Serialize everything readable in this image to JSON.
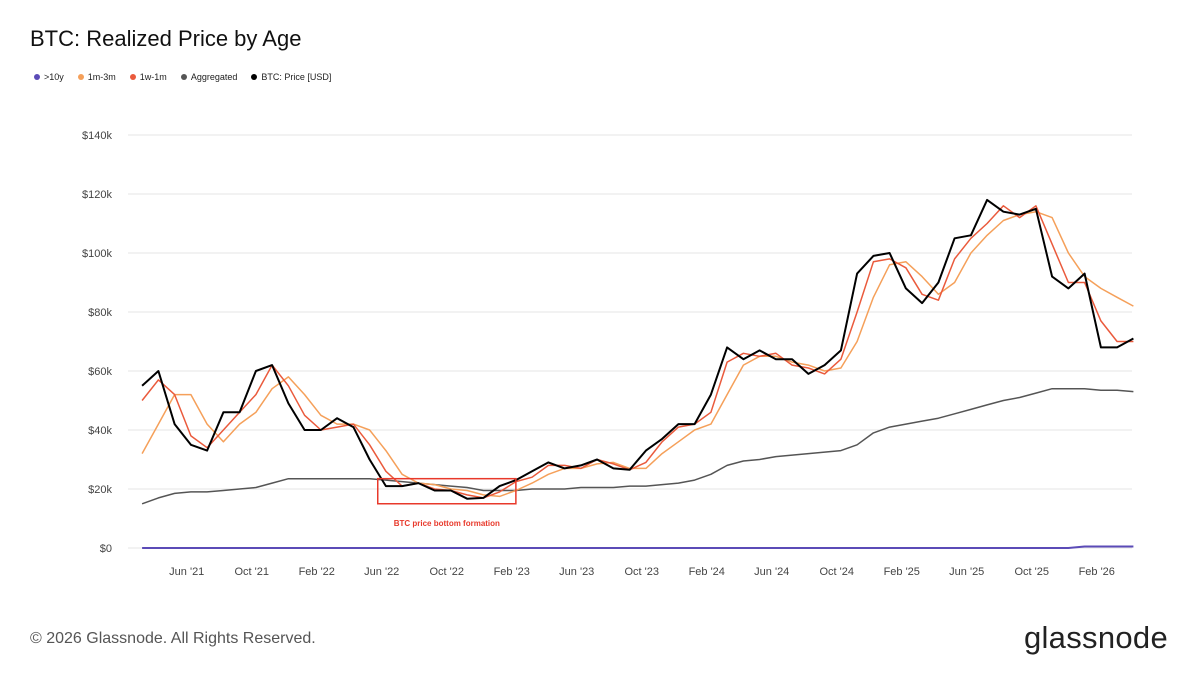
{
  "header": {
    "title": "BTC: Realized Price by Age"
  },
  "footer": {
    "copyright": "© 2026 Glassnode. All Rights Reserved.",
    "logo": "glassnode"
  },
  "chart_data": {
    "type": "line",
    "title": "BTC: Realized Price by Age",
    "xlabel": "",
    "ylabel": "",
    "ylim": [
      0,
      140000
    ],
    "grid": true,
    "legend_position": "top-left",
    "y_ticks": [
      {
        "v": 0,
        "label": "$0"
      },
      {
        "v": 20,
        "label": "$20k"
      },
      {
        "v": 40,
        "label": "$40k"
      },
      {
        "v": 60,
        "label": "$60k"
      },
      {
        "v": 80,
        "label": "$80k"
      },
      {
        "v": 100,
        "label": "$100k"
      },
      {
        "v": 120,
        "label": "$120k"
      },
      {
        "v": 140,
        "label": "$140k"
      }
    ],
    "x_ticks": [
      {
        "m": 3,
        "label": "Jun '21"
      },
      {
        "m": 7,
        "label": "Oct '21"
      },
      {
        "m": 11,
        "label": "Feb '22"
      },
      {
        "m": 15,
        "label": "Jun '22"
      },
      {
        "m": 19,
        "label": "Oct '22"
      },
      {
        "m": 23,
        "label": "Feb '23"
      },
      {
        "m": 27,
        "label": "Jun '23"
      },
      {
        "m": 31,
        "label": "Oct '23"
      },
      {
        "m": 35,
        "label": "Feb '24"
      },
      {
        "m": 39,
        "label": "Jun '24"
      },
      {
        "m": 43,
        "label": "Oct '24"
      },
      {
        "m": 47,
        "label": "Feb '25"
      },
      {
        "m": 51,
        "label": "Jun '25"
      },
      {
        "m": 55,
        "label": "Oct '25"
      },
      {
        "m": 59,
        "label": "Feb '26"
      }
    ],
    "x_start": "2021-03",
    "units": "USD thousands, monthly",
    "annotation": {
      "text": "BTC price bottom formation",
      "from_month": 15,
      "to_month": 23.5,
      "y_low": 15,
      "y_high": 23.5,
      "color": "#e8392b"
    },
    "series": [
      {
        "name": ">10y",
        "color": "#5b4bb7",
        "values": [
          0,
          0,
          0,
          0,
          0,
          0,
          0,
          0,
          0,
          0,
          0,
          0,
          0,
          0,
          0,
          0,
          0,
          0,
          0,
          0,
          0,
          0,
          0,
          0,
          0,
          0,
          0,
          0,
          0,
          0,
          0,
          0,
          0,
          0,
          0,
          0,
          0,
          0,
          0,
          0,
          0,
          0,
          0,
          0,
          0,
          0,
          0,
          0,
          0,
          0,
          0,
          0,
          0,
          0,
          0,
          0,
          0,
          0,
          0.5,
          0.5,
          0.5,
          0.5
        ]
      },
      {
        "name": "1m-3m",
        "color": "#f5a05a",
        "values": [
          32,
          42,
          52,
          52,
          42,
          36,
          42,
          46,
          54,
          58,
          52,
          45,
          42,
          42,
          40,
          33,
          25,
          22,
          21.5,
          20,
          19.5,
          18,
          17.5,
          19.5,
          22,
          25,
          27,
          27,
          28.5,
          29,
          27,
          27,
          32,
          36,
          40,
          42,
          52,
          62,
          65,
          65,
          63,
          62,
          60,
          61,
          70,
          85,
          96,
          97,
          92,
          86,
          90,
          100,
          106,
          111,
          113,
          114,
          112,
          100,
          92,
          88,
          85,
          82
        ]
      },
      {
        "name": "1w-1m",
        "color": "#ea5a3c",
        "values": [
          50,
          57,
          52,
          38,
          34,
          40,
          46,
          52,
          62,
          55,
          45,
          40,
          41,
          42,
          35,
          26,
          21,
          22,
          20,
          19.5,
          18,
          17,
          19,
          22.5,
          24,
          28,
          28,
          27,
          30,
          28.5,
          26.5,
          29,
          36,
          41,
          42,
          46,
          63,
          66,
          65,
          66,
          62,
          61,
          59,
          64,
          80,
          97,
          98,
          95,
          86,
          84,
          98,
          105,
          110,
          116,
          112,
          116,
          103,
          90,
          90,
          77,
          70,
          70
        ]
      },
      {
        "name": "Aggregated",
        "color": "#555555",
        "values": [
          15,
          17,
          18.5,
          19,
          19,
          19.5,
          20,
          20.5,
          22,
          23.5,
          23.5,
          23.5,
          23.5,
          23.5,
          23.5,
          23,
          22.5,
          22,
          21.5,
          21,
          20.5,
          19.5,
          19.5,
          19.5,
          20,
          20,
          20,
          20.5,
          20.5,
          20.5,
          21,
          21,
          21.5,
          22,
          23,
          25,
          28,
          29.5,
          30,
          31,
          31.5,
          32,
          32.5,
          33,
          35,
          39,
          41,
          42,
          43,
          44,
          45.5,
          47,
          48.5,
          50,
          51,
          52.5,
          54,
          54,
          54,
          53.5,
          53.5,
          53
        ]
      },
      {
        "name": "BTC: Price [USD]",
        "color": "#000000",
        "values": [
          55,
          60,
          42,
          35,
          33,
          46,
          46,
          60,
          62,
          49,
          40,
          40,
          44,
          41,
          30,
          21,
          21,
          22,
          19.5,
          19.5,
          16.7,
          17,
          21,
          23,
          26,
          29,
          27,
          28,
          30,
          27,
          26.5,
          33,
          37,
          42,
          42,
          52,
          68,
          64,
          67,
          64,
          64,
          59,
          62,
          67,
          93,
          99,
          100,
          88,
          83,
          90,
          105,
          106,
          118,
          114,
          113,
          115,
          92,
          88,
          93,
          68,
          68,
          71
        ]
      }
    ]
  }
}
